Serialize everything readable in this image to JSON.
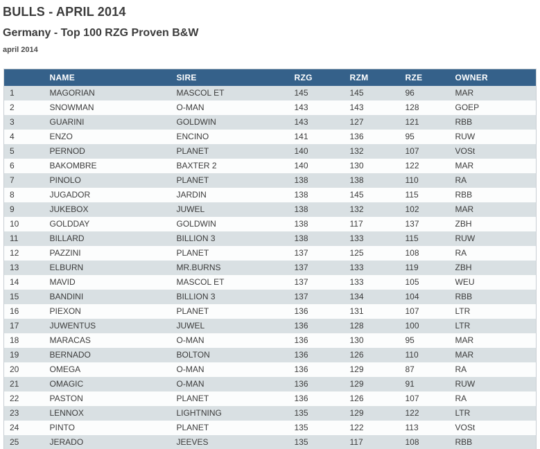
{
  "page": {
    "title": "BULLS - APRIL 2014",
    "subtitle": "Germany - Top 100 RZG Proven B&W",
    "date_label": "april 2014"
  },
  "table": {
    "columns": [
      "",
      "NAME",
      "SIRE",
      "RZG",
      "RZM",
      "RZE",
      "OWNER"
    ],
    "rows": [
      [
        "1",
        "MAGORIAN",
        "MASCOL ET",
        "145",
        "145",
        "96",
        "MAR"
      ],
      [
        "2",
        "SNOWMAN",
        "O-MAN",
        "143",
        "143",
        "128",
        "GOEP"
      ],
      [
        "3",
        "GUARINI",
        "GOLDWIN",
        "143",
        "127",
        "121",
        "RBB"
      ],
      [
        "4",
        "ENZO",
        "ENCINO",
        "141",
        "136",
        "95",
        "RUW"
      ],
      [
        "5",
        "PERNOD",
        "PLANET",
        "140",
        "132",
        "107",
        "VOSt"
      ],
      [
        "6",
        "BAKOMBRE",
        "BAXTER 2",
        "140",
        "130",
        "122",
        "MAR"
      ],
      [
        "7",
        "PINOLO",
        "PLANET",
        "138",
        "138",
        "110",
        "RA"
      ],
      [
        "8",
        "JUGADOR",
        "JARDIN",
        "138",
        "145",
        "115",
        "RBB"
      ],
      [
        "9",
        "JUKEBOX",
        "JUWEL",
        "138",
        "132",
        "102",
        "MAR"
      ],
      [
        "10",
        "GOLDDAY",
        "GOLDWIN",
        "138",
        "117",
        "137",
        "ZBH"
      ],
      [
        "11",
        "BILLARD",
        "BILLION 3",
        "138",
        "133",
        "115",
        "RUW"
      ],
      [
        "12",
        "PAZZINI",
        "PLANET",
        "137",
        "125",
        "108",
        "RA"
      ],
      [
        "13",
        "ELBURN",
        "MR.BURNS",
        "137",
        "133",
        "119",
        "ZBH"
      ],
      [
        "14",
        "MAVID",
        "MASCOL ET",
        "137",
        "133",
        "105",
        "WEU"
      ],
      [
        "15",
        "BANDINI",
        "BILLION 3",
        "137",
        "134",
        "104",
        "RBB"
      ],
      [
        "16",
        "PIEXON",
        "PLANET",
        "136",
        "131",
        "107",
        "LTR"
      ],
      [
        "17",
        "JUWENTUS",
        "JUWEL",
        "136",
        "128",
        "100",
        "LTR"
      ],
      [
        "18",
        "MARACAS",
        "O-MAN",
        "136",
        "130",
        "95",
        "MAR"
      ],
      [
        "19",
        "BERNADO",
        "BOLTON",
        "136",
        "126",
        "110",
        "MAR"
      ],
      [
        "20",
        "OMEGA",
        "O-MAN",
        "136",
        "129",
        "87",
        "RA"
      ],
      [
        "21",
        "OMAGIC",
        "O-MAN",
        "136",
        "129",
        "91",
        "RUW"
      ],
      [
        "22",
        "PASTON",
        "PLANET",
        "136",
        "126",
        "107",
        "RA"
      ],
      [
        "23",
        "LENNOX",
        "LIGHTNING",
        "135",
        "129",
        "122",
        "LTR"
      ],
      [
        "24",
        "PINTO",
        "PLANET",
        "135",
        "122",
        "113",
        "VOSt"
      ],
      [
        "25",
        "JERADO",
        "JEEVES",
        "135",
        "117",
        "108",
        "RBB"
      ]
    ]
  },
  "colors": {
    "header_bg": "#35618a",
    "header_text": "#ffffff",
    "row_odd_bg": "#d9e0e3",
    "row_even_bg": "#fcfdfd",
    "body_text": "#3b3b3b",
    "table_border": "#c7ced4"
  }
}
